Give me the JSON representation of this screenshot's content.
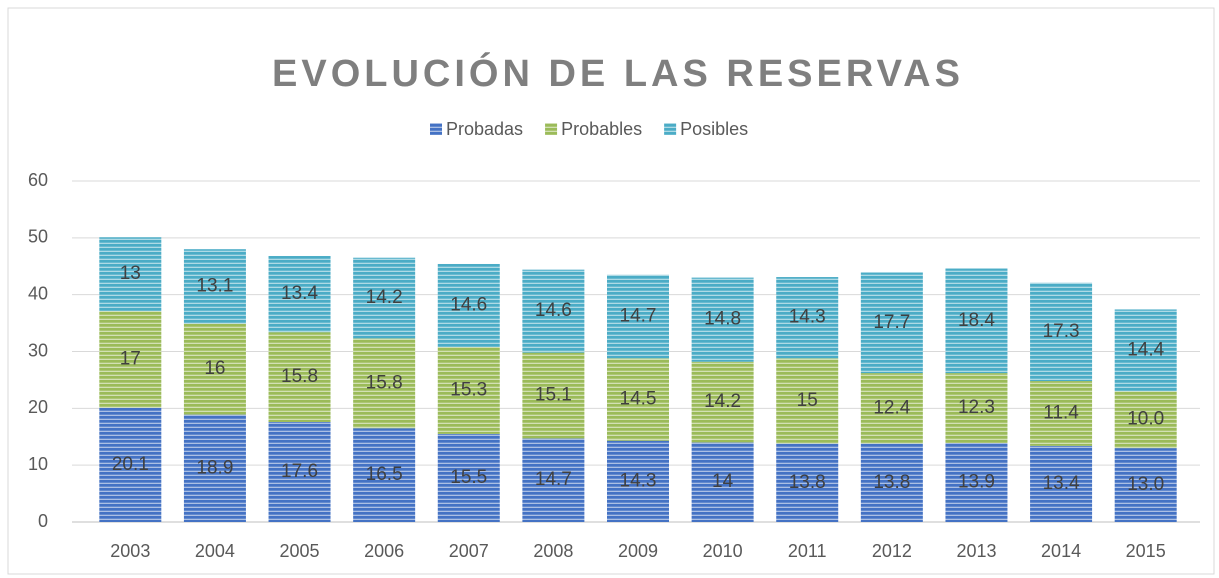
{
  "chart_data": {
    "type": "stacked_bar",
    "title": "EVOLUCIÓN DE LAS RESERVAS",
    "categories": [
      "2003",
      "2004",
      "2005",
      "2006",
      "2007",
      "2008",
      "2009",
      "2010",
      "2011",
      "2012",
      "2013",
      "2014",
      "2015"
    ],
    "series": [
      {
        "name": "Probadas",
        "color": "#4472c4",
        "values": [
          20.1,
          18.9,
          17.6,
          16.5,
          15.5,
          14.7,
          14.3,
          14,
          13.8,
          13.8,
          13.9,
          13.4,
          13.0
        ],
        "value_labels": [
          "20.1",
          "18.9",
          "17.6",
          "16.5",
          "15.5",
          "14.7",
          "14.3",
          "14",
          "13.8",
          "13.8",
          "13.9",
          "13.4",
          "13.0"
        ]
      },
      {
        "name": "Probables",
        "color": "#9bbb59",
        "values": [
          17,
          16,
          15.8,
          15.8,
          15.3,
          15.1,
          14.5,
          14.2,
          15,
          12.4,
          12.3,
          11.4,
          10.0
        ],
        "value_labels": [
          "17",
          "16",
          "15.8",
          "15.8",
          "15.3",
          "15.1",
          "14.5",
          "14.2",
          "15",
          "12.4",
          "12.3",
          "11.4",
          "10.0"
        ]
      },
      {
        "name": "Posibles",
        "color": "#4bacc6",
        "values": [
          13,
          13.1,
          13.4,
          14.2,
          14.6,
          14.6,
          14.7,
          14.8,
          14.3,
          17.7,
          18.4,
          17.3,
          14.4
        ],
        "value_labels": [
          "13",
          "13.1",
          "13.4",
          "14.2",
          "14.6",
          "14.6",
          "14.7",
          "14.8",
          "14.3",
          "17.7",
          "18.4",
          "17.3",
          "14.4"
        ]
      }
    ],
    "ylim": [
      0,
      60
    ],
    "yticks": [
      0,
      10,
      20,
      30,
      40,
      50,
      60
    ],
    "grid": true,
    "legend": "top"
  }
}
